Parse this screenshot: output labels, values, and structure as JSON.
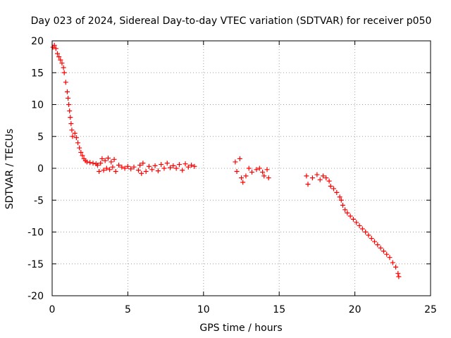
{
  "chart_data": {
    "type": "scatter",
    "title": "Day 023 of 2024, Sidereal Day-to-day VTEC variation (SDTVAR) for receiver p050",
    "xlabel": "GPS time / hours",
    "ylabel": "SDTVAR / TECUs",
    "xlim": [
      0,
      25
    ],
    "ylim": [
      -20,
      20
    ],
    "xticks": [
      0,
      5,
      10,
      15,
      20,
      25
    ],
    "yticks": [
      -20,
      -15,
      -10,
      -5,
      0,
      5,
      10,
      15,
      20
    ],
    "xtick_labels": [
      "0",
      "5",
      "10",
      "15",
      "20",
      "25"
    ],
    "ytick_labels": [
      "-20",
      "-15",
      "-10",
      "-5",
      "0",
      "5",
      "10",
      "15",
      "20"
    ],
    "grid": true,
    "marker": "+",
    "color": "#ff0000",
    "series": [
      {
        "name": "SDTVAR",
        "points": [
          [
            0.05,
            19.0
          ],
          [
            0.15,
            19.3
          ],
          [
            0.25,
            18.8
          ],
          [
            0.35,
            18.0
          ],
          [
            0.45,
            17.5
          ],
          [
            0.55,
            17.0
          ],
          [
            0.65,
            16.5
          ],
          [
            0.75,
            15.8
          ],
          [
            0.8,
            15.0
          ],
          [
            0.9,
            13.5
          ],
          [
            1.0,
            12.0
          ],
          [
            1.05,
            11.0
          ],
          [
            1.1,
            10.0
          ],
          [
            1.15,
            9.0
          ],
          [
            1.2,
            8.0
          ],
          [
            1.25,
            7.0
          ],
          [
            1.3,
            6.0
          ],
          [
            1.35,
            5.0
          ],
          [
            1.5,
            5.5
          ],
          [
            1.6,
            4.8
          ],
          [
            1.7,
            4.0
          ],
          [
            1.8,
            3.2
          ],
          [
            1.9,
            2.5
          ],
          [
            2.0,
            2.0
          ],
          [
            2.1,
            1.5
          ],
          [
            2.2,
            1.2
          ],
          [
            2.3,
            1.0
          ],
          [
            2.5,
            0.9
          ],
          [
            2.7,
            0.8
          ],
          [
            2.9,
            0.7
          ],
          [
            3.0,
            0.5
          ],
          [
            3.1,
            -0.5
          ],
          [
            3.2,
            0.8
          ],
          [
            3.3,
            1.5
          ],
          [
            3.4,
            -0.3
          ],
          [
            3.5,
            1.2
          ],
          [
            3.6,
            0.0
          ],
          [
            3.7,
            1.6
          ],
          [
            3.8,
            -0.2
          ],
          [
            3.9,
            1.0
          ],
          [
            4.0,
            0.2
          ],
          [
            4.1,
            1.4
          ],
          [
            4.2,
            -0.5
          ],
          [
            4.4,
            0.5
          ],
          [
            4.6,
            0.2
          ],
          [
            4.8,
            0.0
          ],
          [
            5.0,
            0.3
          ],
          [
            5.2,
            -0.1
          ],
          [
            5.4,
            0.2
          ],
          [
            5.7,
            -0.3
          ],
          [
            5.8,
            0.5
          ],
          [
            5.9,
            -0.8
          ],
          [
            6.0,
            0.8
          ],
          [
            6.2,
            -0.5
          ],
          [
            6.4,
            0.3
          ],
          [
            6.6,
            -0.2
          ],
          [
            6.8,
            0.4
          ],
          [
            7.0,
            -0.4
          ],
          [
            7.2,
            0.6
          ],
          [
            7.4,
            0.0
          ],
          [
            7.6,
            0.8
          ],
          [
            7.8,
            0.1
          ],
          [
            8.0,
            0.4
          ],
          [
            8.2,
            0.0
          ],
          [
            8.4,
            0.6
          ],
          [
            8.6,
            -0.3
          ],
          [
            8.8,
            0.7
          ],
          [
            9.0,
            0.2
          ],
          [
            9.2,
            0.5
          ],
          [
            9.4,
            0.3
          ],
          [
            12.1,
            1.0
          ],
          [
            12.4,
            1.5
          ],
          [
            12.2,
            -0.5
          ],
          [
            12.5,
            -1.5
          ],
          [
            12.6,
            -2.2
          ],
          [
            12.8,
            -1.2
          ],
          [
            13.0,
            0.0
          ],
          [
            13.2,
            -0.6
          ],
          [
            13.5,
            -0.2
          ],
          [
            13.7,
            0.0
          ],
          [
            13.9,
            -0.6
          ],
          [
            14.0,
            -1.2
          ],
          [
            14.2,
            -0.2
          ],
          [
            14.3,
            -1.5
          ],
          [
            16.8,
            -1.2
          ],
          [
            16.9,
            -2.5
          ],
          [
            17.2,
            -1.5
          ],
          [
            17.5,
            -1.0
          ],
          [
            17.7,
            -1.8
          ],
          [
            17.9,
            -1.2
          ],
          [
            18.1,
            -1.5
          ],
          [
            18.3,
            -2.0
          ],
          [
            18.4,
            -2.8
          ],
          [
            18.6,
            -3.2
          ],
          [
            18.8,
            -3.8
          ],
          [
            19.0,
            -4.5
          ],
          [
            19.1,
            -5.0
          ],
          [
            19.2,
            -5.8
          ],
          [
            19.35,
            -6.5
          ],
          [
            19.5,
            -7.0
          ],
          [
            19.7,
            -7.5
          ],
          [
            19.9,
            -8.0
          ],
          [
            20.1,
            -8.5
          ],
          [
            20.3,
            -9.0
          ],
          [
            20.5,
            -9.5
          ],
          [
            20.7,
            -10.0
          ],
          [
            20.9,
            -10.5
          ],
          [
            21.1,
            -11.0
          ],
          [
            21.3,
            -11.5
          ],
          [
            21.5,
            -12.0
          ],
          [
            21.7,
            -12.5
          ],
          [
            21.9,
            -13.0
          ],
          [
            22.1,
            -13.5
          ],
          [
            22.3,
            -14.0
          ],
          [
            22.5,
            -14.8
          ],
          [
            22.7,
            -15.5
          ],
          [
            22.85,
            -16.5
          ],
          [
            22.9,
            -17.0
          ]
        ]
      }
    ]
  }
}
